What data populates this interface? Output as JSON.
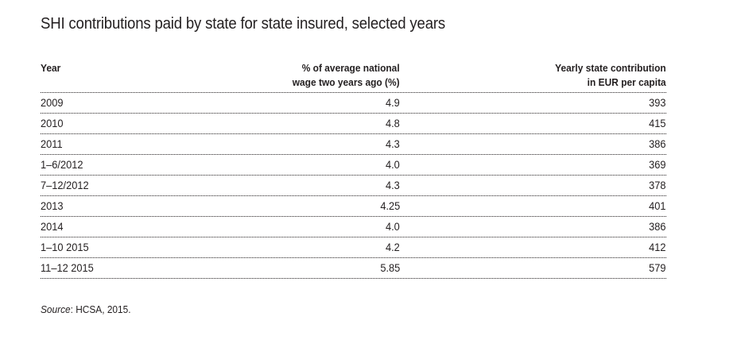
{
  "title": "SHI contributions paid by state for state insured, selected years",
  "table": {
    "headers": {
      "year": "Year",
      "pct_line1": "% of average national",
      "pct_line2": "wage two years ago (%)",
      "eur_line1": "Yearly state contribution",
      "eur_line2": "in EUR per capita"
    },
    "rows": [
      {
        "year": "2009",
        "pct": "4.9",
        "eur": "393"
      },
      {
        "year": "2010",
        "pct": "4.8",
        "eur": "415"
      },
      {
        "year": "2011",
        "pct": "4.3",
        "eur": "386"
      },
      {
        "year": "1–6/2012",
        "pct": "4.0",
        "eur": "369"
      },
      {
        "year": "7–12/2012",
        "pct": "4.3",
        "eur": "378"
      },
      {
        "year": "2013",
        "pct": "4.25",
        "eur": "401"
      },
      {
        "year": "2014",
        "pct": "4.0",
        "eur": "386"
      },
      {
        "year": "1–10 2015",
        "pct": "4.2",
        "eur": "412"
      },
      {
        "year": "11–12 2015",
        "pct": "5.85",
        "eur": "579"
      }
    ]
  },
  "source": {
    "label": "Source",
    "text": ": HCSA, 2015."
  }
}
